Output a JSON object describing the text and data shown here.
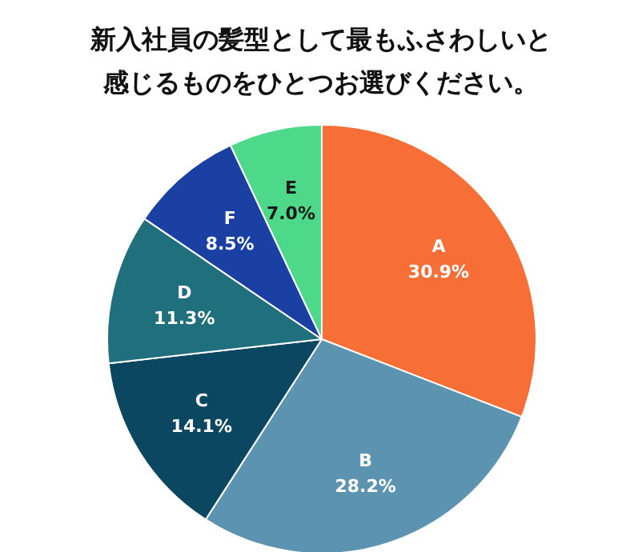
{
  "chart_data": {
    "type": "pie",
    "title": "新入社員の髪型として最もふさわしいと感じるものをひとつお選びください。",
    "categories": [
      "A",
      "B",
      "C",
      "D",
      "F",
      "E"
    ],
    "values": [
      30.9,
      28.2,
      14.1,
      11.3,
      8.5,
      7.0
    ],
    "value_labels": [
      "30.9%",
      "28.2%",
      "14.1%",
      "11.3%",
      "8.5%",
      "7.0%"
    ],
    "colors": [
      "#f76f36",
      "#5c93b1",
      "#0c4762",
      "#1f6f7d",
      "#1a40a4",
      "#4ed98a"
    ],
    "legend": false
  }
}
